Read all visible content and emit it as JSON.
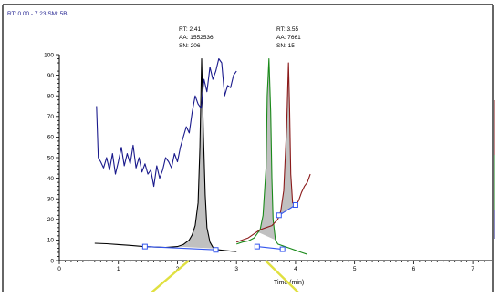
{
  "header": {
    "rt_range": "RT: 0.00 - 7.23  SM: 5B"
  },
  "chart_data": {
    "type": "line",
    "xlabel": "Time (min)",
    "ylabel": "",
    "xlim": [
      0,
      7.23
    ],
    "ylim": [
      0,
      100
    ],
    "x_ticks": [
      "0",
      "1",
      "2",
      "3",
      "4",
      "5",
      "6",
      "7"
    ],
    "y_ticks": [
      "0",
      "10",
      "20",
      "30",
      "40",
      "50",
      "60",
      "70",
      "80",
      "90",
      "100"
    ],
    "grid": false,
    "peak_labels": [
      {
        "rt": "RT: 2.41",
        "area": "AA: 1552536",
        "sn": "SN: 206"
      },
      {
        "rt": "RT: 3.55",
        "area": "AA: 7661",
        "sn": "SN: 15"
      }
    ],
    "colors": {
      "black": "#000000",
      "blue_trace": "#1a1a8c",
      "green": "#1a8a1a",
      "red": "#8b1a1a",
      "baseline": "#3355ee",
      "fill": "#c0c0c0",
      "frame": "#000000",
      "annotation": "#e0e040"
    },
    "series": [
      {
        "color": "black",
        "x": [
          0.6,
          0.8,
          1.0,
          1.2,
          1.4,
          1.6,
          1.8,
          2.0,
          2.1,
          2.2,
          2.25,
          2.3,
          2.35,
          2.38,
          2.41,
          2.44,
          2.47,
          2.5,
          2.55,
          2.6,
          2.7,
          2.8,
          2.9,
          3.0
        ],
        "y": [
          8.4,
          8.2,
          7.8,
          7.4,
          6.9,
          6.6,
          6.4,
          6.8,
          7.8,
          10,
          12.5,
          17,
          28,
          55,
          98,
          62,
          32,
          16,
          9,
          6.5,
          5.2,
          4.9,
          4.6,
          4.4
        ]
      },
      {
        "color": "blue_trace",
        "x": [
          0.63,
          0.66,
          0.7,
          0.75,
          0.8,
          0.85,
          0.9,
          0.95,
          1.0,
          1.05,
          1.1,
          1.15,
          1.2,
          1.25,
          1.3,
          1.35,
          1.4,
          1.45,
          1.5,
          1.55,
          1.6,
          1.65,
          1.7,
          1.75,
          1.8,
          1.85,
          1.9,
          1.95,
          2.0,
          2.05,
          2.1,
          2.15,
          2.2,
          2.25,
          2.3,
          2.35,
          2.4,
          2.45,
          2.5,
          2.55,
          2.6,
          2.65,
          2.7,
          2.75,
          2.8,
          2.85,
          2.9,
          2.95,
          3.0
        ],
        "y": [
          75,
          50,
          48,
          45,
          50,
          44,
          52,
          42,
          48,
          55,
          46,
          52,
          47,
          56,
          45,
          50,
          43,
          47,
          42,
          44,
          36,
          46,
          40,
          44,
          50,
          48,
          45,
          52,
          48,
          55,
          60,
          65,
          62,
          72,
          80,
          76,
          74,
          88,
          82,
          94,
          88,
          92,
          98,
          96,
          80,
          85,
          84,
          90,
          92
        ]
      },
      {
        "color": "green",
        "x": [
          3.0,
          3.1,
          3.2,
          3.3,
          3.4,
          3.45,
          3.5,
          3.52,
          3.55,
          3.58,
          3.6,
          3.62,
          3.66,
          3.7,
          3.8,
          3.9,
          4.0,
          4.1,
          4.2
        ],
        "y": [
          8,
          9,
          9.5,
          11,
          15,
          22,
          45,
          80,
          98,
          72,
          40,
          20,
          10,
          8,
          7,
          6,
          5,
          4,
          3
        ]
      },
      {
        "color": "red",
        "x": [
          3.0,
          3.1,
          3.2,
          3.3,
          3.4,
          3.5,
          3.6,
          3.7,
          3.75,
          3.8,
          3.85,
          3.88,
          3.9,
          3.92,
          3.95,
          4.0,
          4.05,
          4.1,
          4.15,
          4.2,
          4.25
        ],
        "y": [
          9,
          10,
          11,
          13,
          15,
          16,
          17,
          20,
          24,
          34,
          65,
          96,
          74,
          42,
          28,
          27,
          29,
          33,
          36,
          38,
          42
        ]
      }
    ],
    "fills": [
      {
        "x": [
          2.0,
          2.1,
          2.2,
          2.25,
          2.3,
          2.35,
          2.38,
          2.41,
          2.44,
          2.47,
          2.5,
          2.55,
          2.6,
          2.65
        ],
        "y": [
          6.8,
          7.8,
          10,
          12.5,
          17,
          28,
          55,
          98,
          62,
          32,
          16,
          9,
          6.5,
          5.8
        ]
      },
      {
        "x": [
          3.35,
          3.4,
          3.45,
          3.5,
          3.52,
          3.55,
          3.58,
          3.6,
          3.62,
          3.66
        ],
        "y": [
          14,
          15,
          22,
          45,
          80,
          98,
          72,
          40,
          20,
          10
        ]
      },
      {
        "x": [
          3.72,
          3.75,
          3.8,
          3.85,
          3.88,
          3.9,
          3.92,
          3.95,
          4.0
        ],
        "y": [
          22,
          24,
          34,
          65,
          96,
          74,
          42,
          28,
          27
        ]
      }
    ],
    "baselines": [
      {
        "x": [
          1.45,
          2.65
        ],
        "y": [
          6.8,
          5.2
        ]
      },
      {
        "x": [
          3.35,
          3.78
        ],
        "y": [
          6.8,
          5.5
        ]
      },
      {
        "x": [
          3.72,
          4.0
        ],
        "y": [
          22,
          27
        ]
      }
    ],
    "markers": [
      {
        "x": 1.45,
        "y": 6.8
      },
      {
        "x": 2.65,
        "y": 5.2
      },
      {
        "x": 3.35,
        "y": 6.8
      },
      {
        "x": 3.78,
        "y": 5.5
      },
      {
        "x": 3.72,
        "y": 22
      },
      {
        "x": 4.0,
        "y": 27
      }
    ]
  }
}
